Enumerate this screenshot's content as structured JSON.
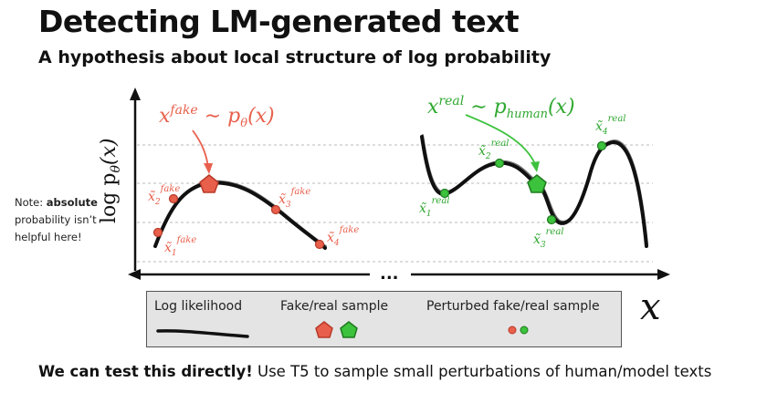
{
  "title": "Detecting LM-generated text",
  "subtitle": "A hypothesis about local structure of log probability",
  "note": {
    "prefix": "Note: ",
    "bold": "absolute",
    "rest": "probability isn’t helpful here!"
  },
  "axis": {
    "y_label": "log pθ(x)",
    "x_label": "x",
    "ellipsis": "..."
  },
  "fake_panel": {
    "formula": "x^fake ~ pθ(x)",
    "perturbed_labels": [
      "x̃₁fake",
      "x̃₂fake",
      "x̃₃fake",
      "x̃₄fake"
    ]
  },
  "real_panel": {
    "formula": "x^real ~ p_human(x)",
    "perturbed_labels": [
      "x̃₁real",
      "x̃₂real",
      "x̃₃real",
      "x̃₄real"
    ]
  },
  "legend": {
    "log_likelihood": "Log likelihood",
    "sample": "Fake/real sample",
    "perturbed": "Perturbed fake/real sample"
  },
  "footer": {
    "bold": "We can test this directly!",
    "rest": " Use T5 to sample small perturbations of human/model texts"
  },
  "colors": {
    "fake": "#e8604c",
    "fake_dark": "#b83a28",
    "real": "#3cc23c",
    "real_dark": "#1f7a1f",
    "fake_text": "#e8604c",
    "real_text": "#2fa82f",
    "gridline": "#bbbbbb"
  }
}
